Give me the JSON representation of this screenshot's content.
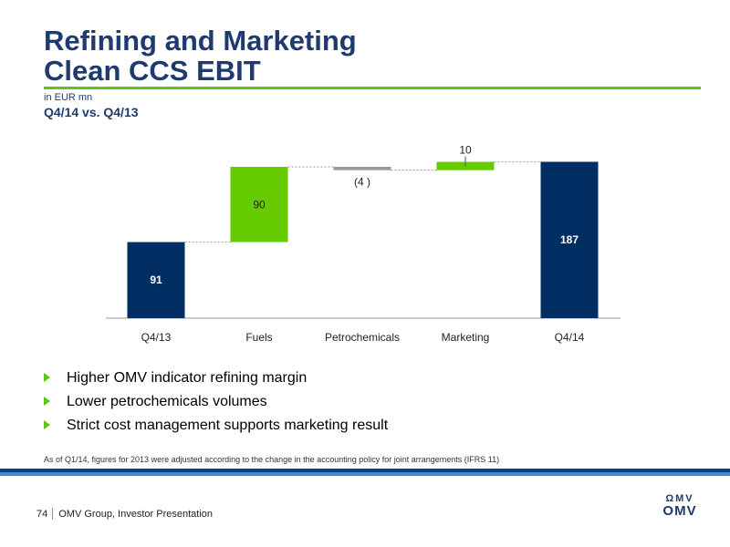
{
  "header": {
    "title_line1": "Refining and Marketing",
    "title_line2": "Clean CCS EBIT",
    "unit": "in EUR mn",
    "subtitle": "Q4/14 vs. Q4/13"
  },
  "colors": {
    "navy": "#002d62",
    "green": "#66cc00",
    "grey": "#999999",
    "text_blue": "#1f3a6e"
  },
  "chart_data": {
    "type": "waterfall",
    "title": "Refining and Marketing Clean CCS EBIT",
    "unit": "in EUR mn",
    "subtitle": "Q4/14 vs. Q4/13",
    "categories": [
      "Q4/13",
      "Fuels",
      "Petrochemicals",
      "Marketing",
      "Q4/14"
    ],
    "values": [
      91,
      90,
      -4,
      10,
      187
    ],
    "labels": [
      "91",
      "90",
      "(4 )",
      "10",
      "187"
    ],
    "kinds": [
      "total",
      "delta",
      "delta",
      "delta",
      "total"
    ],
    "ylim": [
      0,
      200
    ],
    "grid": false,
    "legend": "none"
  },
  "bullets": [
    "Higher OMV indicator refining margin",
    "Lower petrochemicals volumes",
    "Strict cost management supports marketing result"
  ],
  "footnote": "As of Q1/14, figures for 2013 were adjusted according to the change in the accounting policy for joint arrangements (IFRS 11)",
  "footer": {
    "page": "74",
    "text": "OMV Group, Investor Presentation"
  },
  "logo": {
    "mark": "ΩMV",
    "word": "OMV"
  }
}
